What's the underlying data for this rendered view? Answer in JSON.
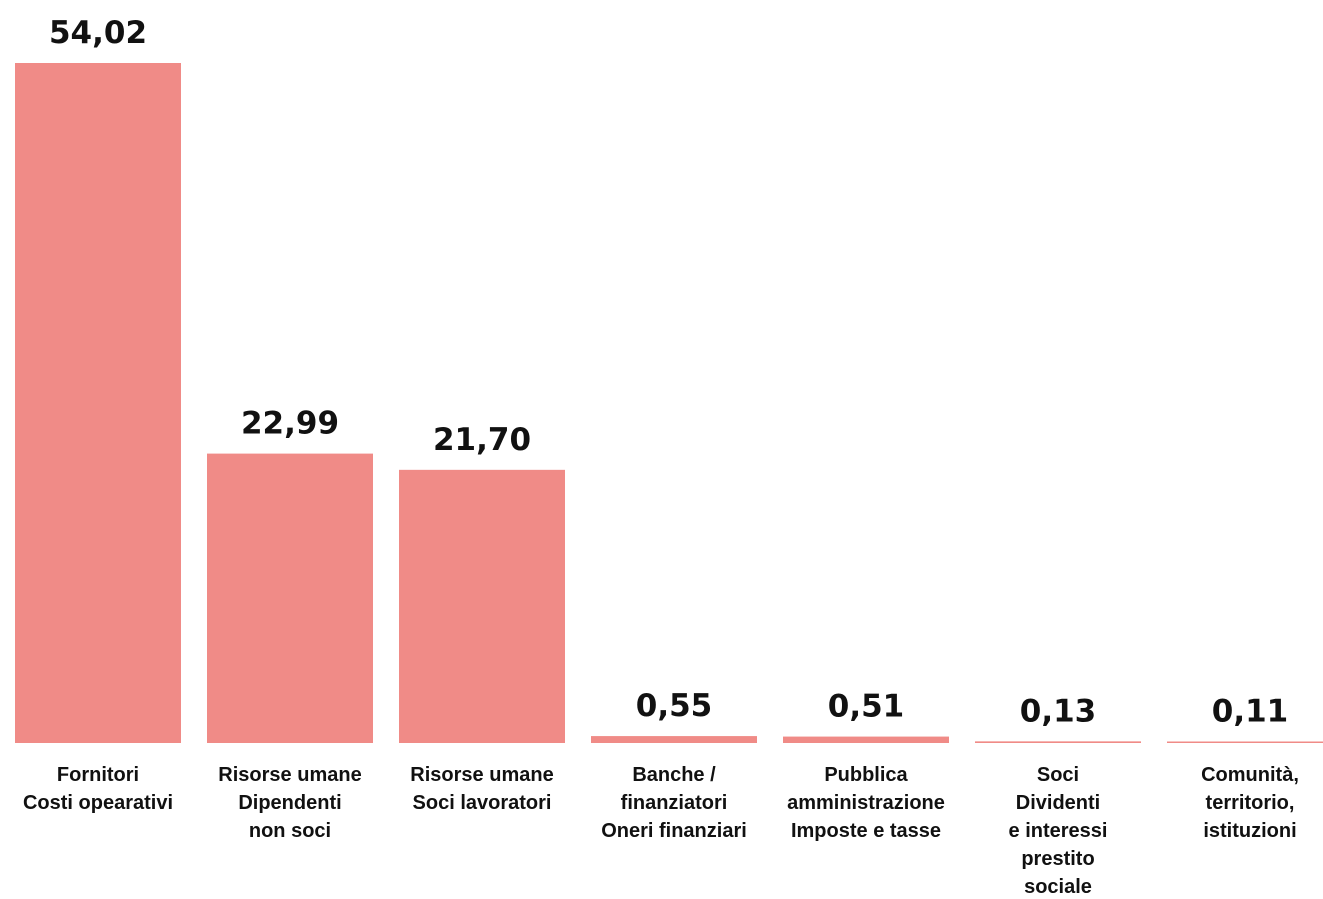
{
  "chart_data": {
    "type": "bar",
    "categories": [
      [
        "Fornitori",
        "Costi opearativi"
      ],
      [
        "Risorse umane",
        "Dipendenti",
        "non soci"
      ],
      [
        "Risorse umane",
        "Soci lavoratori"
      ],
      [
        "Banche /",
        "finanziatori",
        "Oneri finanziari"
      ],
      [
        "Pubblica",
        "amministrazione",
        "Imposte e tasse"
      ],
      [
        "Soci",
        "Dividenti",
        "e interessi",
        "prestito",
        "sociale"
      ],
      [
        "Comunità,",
        "territorio,",
        "istituzioni"
      ]
    ],
    "values": [
      54.02,
      22.99,
      21.7,
      0.55,
      0.51,
      0.13,
      0.11
    ],
    "value_labels": [
      "54,02",
      "22,99",
      "21,70",
      "0,55",
      "0,51",
      "0,13",
      "0,11"
    ],
    "ylim": [
      0,
      54.02
    ],
    "bar_color": "#f08b87",
    "text_color": "#111111",
    "grid": false,
    "legend": "none"
  }
}
